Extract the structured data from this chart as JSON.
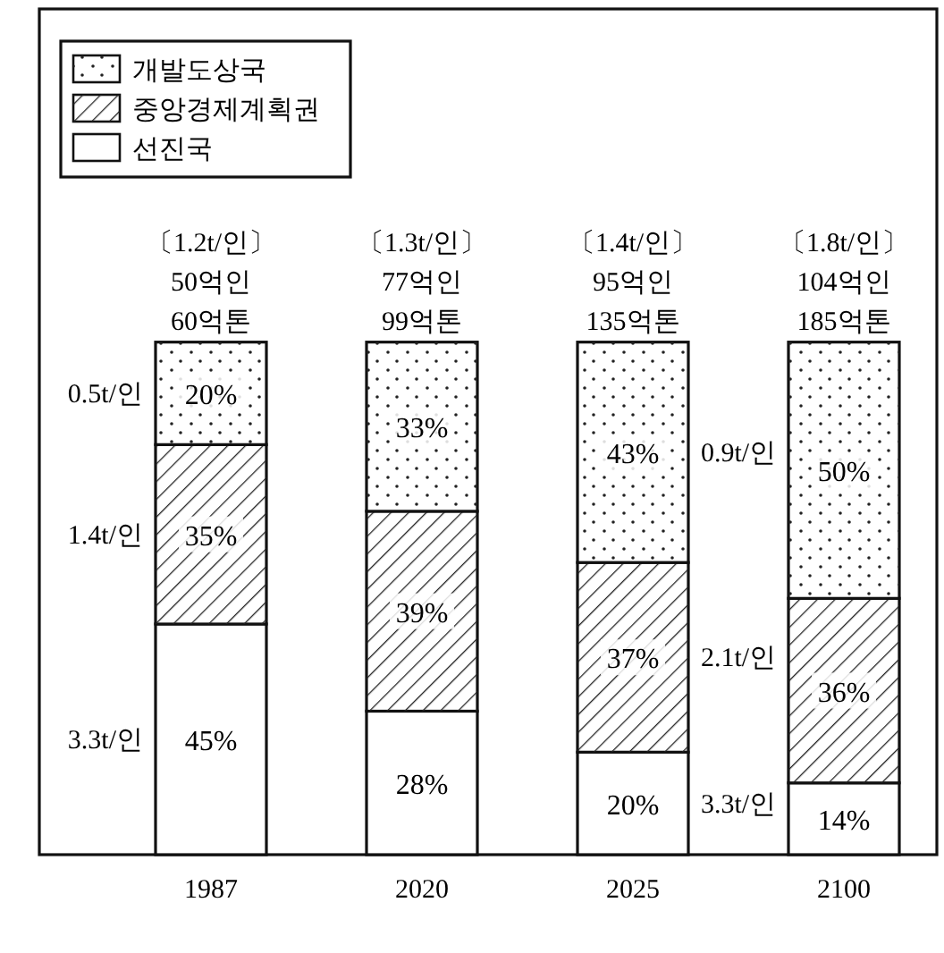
{
  "chart_data": {
    "type": "bar",
    "stacked": true,
    "legend": "top left",
    "categories": [
      "1987",
      "2020",
      "2025",
      "2100"
    ],
    "series": [
      {
        "name": "선진국",
        "color": "#ffffff",
        "values": [
          45,
          28,
          20,
          14
        ],
        "value_labels": [
          "45%",
          "28%",
          "20%",
          "14%"
        ]
      },
      {
        "name": "중앙경제계획권",
        "color": "#ffffff",
        "values": [
          35,
          39,
          37,
          36
        ],
        "value_labels": [
          "35%",
          "39%",
          "37%",
          "36%"
        ]
      },
      {
        "name": "개발도상국",
        "color": "#ffffff",
        "values": [
          20,
          33,
          43,
          50
        ],
        "value_labels": [
          "20%",
          "33%",
          "43%",
          "50%"
        ]
      }
    ],
    "annotations": [
      "3.3t/인",
      "1.4t/인",
      "0.5t/인",
      "3.3t/인",
      "2.1t/인",
      "0.9t/인",
      "〔1.2t/인〕",
      "50억인",
      "60억톤",
      "〔1.3t/인〕",
      "77억인",
      "99억톤",
      "〔1.4t/인〕",
      "95억인",
      "135억톤",
      "〔1.8t/인〕",
      "104억인",
      "185억톤"
    ]
  }
}
